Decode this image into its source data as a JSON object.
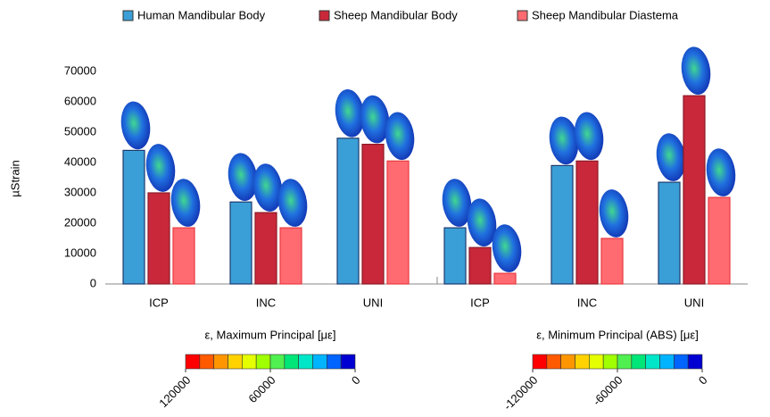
{
  "chart_data": {
    "type": "bar",
    "y_label": "µStrain",
    "categories": [
      "ICP",
      "INC",
      "UNI",
      "ICP",
      "INC",
      "UNI"
    ],
    "series": [
      {
        "name": "Human Mandibular Body",
        "color": "#3a9fd6",
        "values": [
          44000,
          27000,
          48000,
          18500,
          39000,
          33500
        ]
      },
      {
        "name": "Sheep Mandibular Body",
        "color": "#c8283a",
        "values": [
          30000,
          23500,
          46000,
          12000,
          40500,
          62000
        ]
      },
      {
        "name": "Sheep Mandibular Diastema",
        "color": "#ff6b70",
        "values": [
          18500,
          18500,
          40500,
          3500,
          15000,
          28500
        ]
      }
    ],
    "ylim": [
      0,
      70000
    ],
    "yticks": [
      0,
      10000,
      20000,
      30000,
      40000,
      50000,
      60000,
      70000
    ],
    "legend": "top"
  },
  "colorbars": [
    {
      "title": "ε, Maximum Principal [με]",
      "range": [
        120000,
        0
      ],
      "ticks": [
        120000,
        60000,
        0
      ]
    },
    {
      "title": "ε, Minimum Principal (ABS) [με]",
      "range": [
        -120000,
        0
      ],
      "ticks": [
        -120000,
        -60000,
        0
      ]
    }
  ],
  "colorbar_colors": [
    "#ff0000",
    "#ff5a00",
    "#ff9600",
    "#ffd200",
    "#e6ff00",
    "#a0ff00",
    "#50f050",
    "#00e678",
    "#00e6c8",
    "#00b4ff",
    "#0064ff",
    "#0000d2"
  ]
}
